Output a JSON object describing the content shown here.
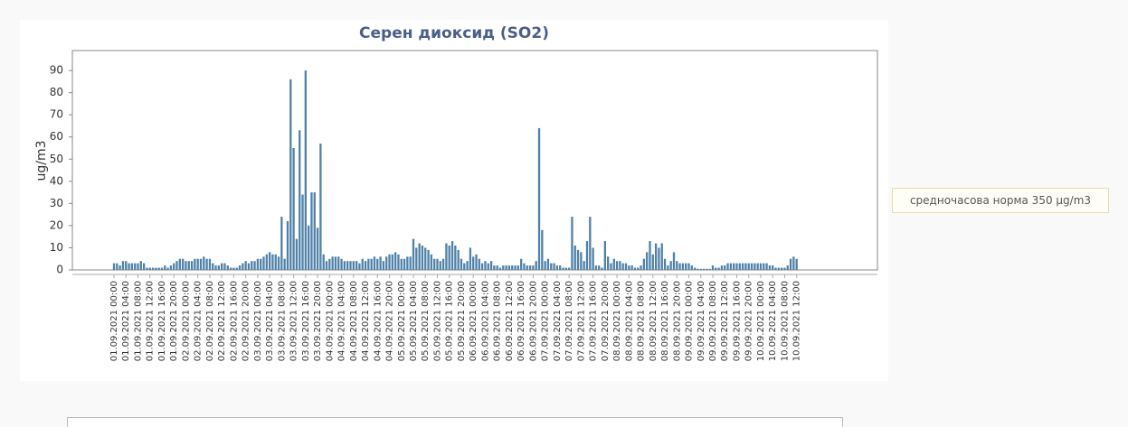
{
  "chart_data": {
    "type": "bar",
    "title": "Серен диоксид (SO2)",
    "y_label": "ug/m3",
    "annotation": "средночасова норма 350 µg/m3",
    "color": "#4f81a8",
    "ylim": [
      0,
      99
    ],
    "yticks": [
      0,
      10,
      20,
      30,
      40,
      50,
      60,
      70,
      80,
      90
    ],
    "categories": [
      "01.09.2021 00:00",
      null,
      null,
      null,
      "01.09.2021 04:00",
      null,
      null,
      null,
      "01.09.2021 08:00",
      null,
      null,
      null,
      "01.09.2021 12:00",
      null,
      null,
      null,
      "01.09.2021 16:00",
      null,
      null,
      null,
      "01.09.2021 20:00",
      null,
      null,
      null,
      "02.09.2021 00:00",
      null,
      null,
      null,
      "02.09.2021 04:00",
      null,
      null,
      null,
      "02.09.2021 08:00",
      null,
      null,
      null,
      "02.09.2021 12:00",
      null,
      null,
      null,
      "02.09.2021 16:00",
      null,
      null,
      null,
      "02.09.2021 20:00",
      null,
      null,
      null,
      "03.09.2021 00:00",
      null,
      null,
      null,
      "03.09.2021 04:00",
      null,
      null,
      null,
      "03.09.2021 08:00",
      null,
      null,
      null,
      "03.09.2021 12:00",
      null,
      null,
      null,
      "03.09.2021 16:00",
      null,
      null,
      null,
      "03.09.2021 20:00",
      null,
      null,
      null,
      "04.09.2021 00:00",
      null,
      null,
      null,
      "04.09.2021 04:00",
      null,
      null,
      null,
      "04.09.2021 08:00",
      null,
      null,
      null,
      "04.09.2021 12:00",
      null,
      null,
      null,
      "04.09.2021 16:00",
      null,
      null,
      null,
      "04.09.2021 20:00",
      null,
      null,
      null,
      "05.09.2021 00:00",
      null,
      null,
      null,
      "05.09.2021 04:00",
      null,
      null,
      null,
      "05.09.2021 08:00",
      null,
      null,
      null,
      "05.09.2021 12:00",
      null,
      null,
      null,
      "05.09.2021 16:00",
      null,
      null,
      null,
      "05.09.2021 20:00",
      null,
      null,
      null,
      "06.09.2021 00:00",
      null,
      null,
      null,
      "06.09.2021 04:00",
      null,
      null,
      null,
      "06.09.2021 08:00",
      null,
      null,
      null,
      "06.09.2021 12:00",
      null,
      null,
      null,
      "06.09.2021 16:00",
      null,
      null,
      null,
      "06.09.2021 20:00",
      null,
      null,
      null,
      "07.09.2021 00:00",
      null,
      null,
      null,
      "07.09.2021 04:00",
      null,
      null,
      null,
      "07.09.2021 08:00",
      null,
      null,
      null,
      "07.09.2021 12:00",
      null,
      null,
      null,
      "07.09.2021 16:00",
      null,
      null,
      null,
      "07.09.2021 20:00",
      null,
      null,
      null,
      "08.09.2021 00:00",
      null,
      null,
      null,
      "08.09.2021 04:00",
      null,
      null,
      null,
      "08.09.2021 08:00",
      null,
      null,
      null,
      "08.09.2021 12:00",
      null,
      null,
      null,
      "08.09.2021 16:00",
      null,
      null,
      null,
      "08.09.2021 20:00",
      null,
      null,
      null,
      "09.09.2021 00:00",
      null,
      null,
      null,
      "09.09.2021 04:00",
      null,
      null,
      null,
      "09.09.2021 08:00",
      null,
      null,
      null,
      "09.09.2021 12:00",
      null,
      null,
      null,
      "09.09.2021 16:00",
      null,
      null,
      null,
      "09.09.2021 20:00",
      null,
      null,
      null,
      "10.09.2021 00:00",
      null,
      null,
      null,
      "10.09.2021 04:00",
      null,
      null,
      null,
      "10.09.2021 08:00",
      null,
      null,
      null,
      "10.09.2021 12:00"
    ],
    "values": [
      3,
      3,
      2,
      4,
      4,
      3,
      3,
      3,
      3,
      4,
      3,
      1,
      1,
      1,
      1,
      1,
      1,
      2,
      1,
      2,
      3,
      4,
      5,
      5,
      4,
      4,
      4,
      5,
      5,
      5,
      6,
      5,
      5,
      3,
      2,
      2,
      3,
      3,
      2,
      1,
      1,
      1,
      2,
      3,
      4,
      3,
      4,
      4,
      5,
      5,
      6,
      7,
      8,
      7,
      7,
      6,
      24,
      5,
      22,
      86,
      55,
      14,
      63,
      34,
      90,
      20,
      35,
      35,
      19,
      57,
      7,
      4,
      5,
      6,
      6,
      6,
      5,
      4,
      4,
      4,
      4,
      4,
      3,
      5,
      4,
      5,
      5,
      6,
      5,
      6,
      4,
      6,
      7,
      7,
      8,
      7,
      5,
      5,
      6,
      6,
      14,
      10,
      12,
      11,
      10,
      9,
      7,
      5,
      5,
      4,
      5,
      12,
      11,
      13,
      11,
      9,
      5,
      3,
      4,
      10,
      6,
      7,
      5,
      3,
      4,
      3,
      4,
      2,
      2,
      1,
      2,
      2,
      2,
      2,
      2,
      2,
      5,
      3,
      2,
      2,
      2,
      4,
      64,
      18,
      4,
      5,
      3,
      3,
      2,
      2,
      1,
      1,
      1,
      24,
      11,
      9,
      8,
      4,
      13,
      24,
      10,
      2,
      2,
      1,
      13,
      6,
      3,
      5,
      4,
      4,
      3,
      3,
      2,
      2,
      1,
      1,
      2,
      5,
      8,
      13,
      7,
      12,
      10,
      12,
      5,
      2,
      4,
      8,
      4,
      3,
      3,
      3,
      3,
      2,
      1,
      0.5,
      0.5,
      0.5,
      0.5,
      0.5,
      2,
      1,
      1,
      2,
      2,
      3,
      3,
      3,
      3,
      3,
      3,
      3,
      3,
      3,
      3,
      3,
      3,
      3,
      3,
      2,
      2,
      1,
      1,
      1,
      1,
      2,
      5,
      6,
      5
    ]
  }
}
